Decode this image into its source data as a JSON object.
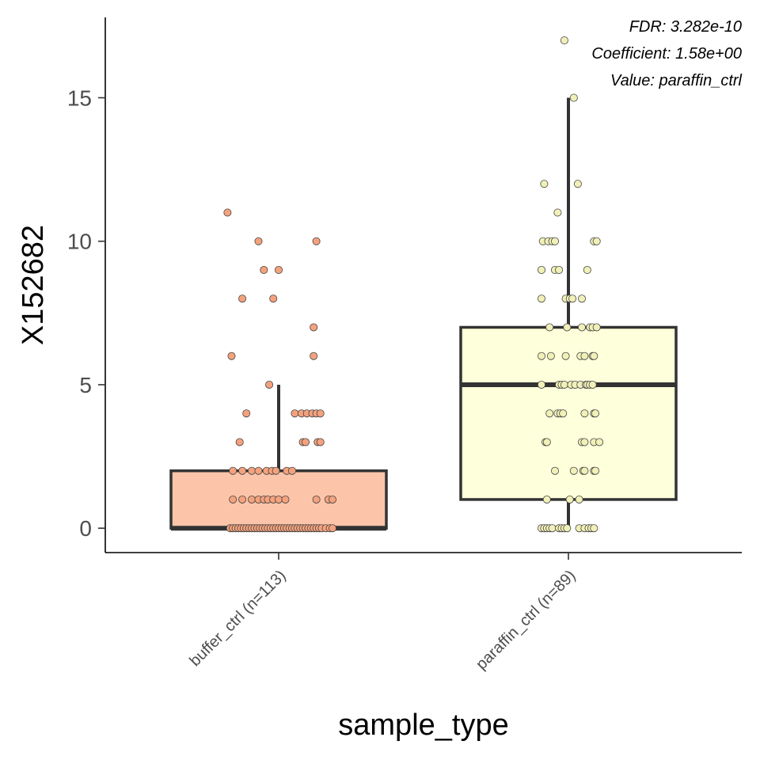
{
  "chart_data": {
    "type": "box",
    "xlabel": "sample_type",
    "ylabel": "X152682",
    "ylim": [
      -0.85,
      17.8
    ],
    "yticks": [
      0,
      5,
      10,
      15
    ],
    "categories": [
      "buffer_ctrl (n=113)",
      "paraffin_ctrl (n=89)"
    ],
    "annotations": [
      "FDR: 3.282e-10",
      "Coefficient: 1.58e+00",
      "Value: paraffin_ctrl"
    ],
    "grid": false,
    "legend": "none",
    "series": [
      {
        "category": "buffer_ctrl (n=113)",
        "fill": "#fcc5aa",
        "point_color": "#f4a27d",
        "box": {
          "q1": 0,
          "median": 0,
          "q3": 2,
          "whisker_low": 0,
          "whisker_high": 5
        },
        "points": [
          {
            "x": -0.38,
            "y": 11
          },
          {
            "x": -0.15,
            "y": 10
          },
          {
            "x": 0.28,
            "y": 10
          },
          {
            "x": -0.11,
            "y": 9
          },
          {
            "x": 0.0,
            "y": 9
          },
          {
            "x": -0.27,
            "y": 8
          },
          {
            "x": -0.04,
            "y": 8
          },
          {
            "x": 0.26,
            "y": 7
          },
          {
            "x": -0.35,
            "y": 6
          },
          {
            "x": 0.26,
            "y": 6
          },
          {
            "x": -0.07,
            "y": 5
          },
          {
            "x": -0.24,
            "y": 4
          },
          {
            "x": 0.12,
            "y": 4
          },
          {
            "x": 0.17,
            "y": 4
          },
          {
            "x": 0.21,
            "y": 4
          },
          {
            "x": 0.25,
            "y": 4
          },
          {
            "x": 0.28,
            "y": 4
          },
          {
            "x": 0.31,
            "y": 4
          },
          {
            "x": -0.29,
            "y": 3
          },
          {
            "x": 0.18,
            "y": 3
          },
          {
            "x": 0.2,
            "y": 3
          },
          {
            "x": 0.29,
            "y": 3
          },
          {
            "x": 0.31,
            "y": 3
          },
          {
            "x": -0.34,
            "y": 2
          },
          {
            "x": -0.27,
            "y": 2
          },
          {
            "x": -0.2,
            "y": 2
          },
          {
            "x": -0.15,
            "y": 2
          },
          {
            "x": -0.09,
            "y": 2
          },
          {
            "x": -0.05,
            "y": 2
          },
          {
            "x": -0.02,
            "y": 2
          },
          {
            "x": 0.06,
            "y": 2
          },
          {
            "x": 0.1,
            "y": 2
          },
          {
            "x": -0.34,
            "y": 1
          },
          {
            "x": -0.27,
            "y": 1
          },
          {
            "x": -0.2,
            "y": 1
          },
          {
            "x": -0.15,
            "y": 1
          },
          {
            "x": -0.11,
            "y": 1
          },
          {
            "x": -0.08,
            "y": 1
          },
          {
            "x": -0.04,
            "y": 1
          },
          {
            "x": 0.0,
            "y": 1
          },
          {
            "x": 0.05,
            "y": 1
          },
          {
            "x": 0.28,
            "y": 1
          },
          {
            "x": 0.37,
            "y": 1
          },
          {
            "x": 0.4,
            "y": 1
          },
          {
            "x": -0.36,
            "y": 0
          },
          {
            "x": -0.34,
            "y": 0
          },
          {
            "x": -0.32,
            "y": 0
          },
          {
            "x": -0.3,
            "y": 0
          },
          {
            "x": -0.28,
            "y": 0
          },
          {
            "x": -0.26,
            "y": 0
          },
          {
            "x": -0.24,
            "y": 0
          },
          {
            "x": -0.22,
            "y": 0
          },
          {
            "x": -0.2,
            "y": 0
          },
          {
            "x": -0.18,
            "y": 0
          },
          {
            "x": -0.16,
            "y": 0
          },
          {
            "x": -0.14,
            "y": 0
          },
          {
            "x": -0.12,
            "y": 0
          },
          {
            "x": -0.1,
            "y": 0
          },
          {
            "x": -0.08,
            "y": 0
          },
          {
            "x": -0.06,
            "y": 0
          },
          {
            "x": -0.04,
            "y": 0
          },
          {
            "x": -0.02,
            "y": 0
          },
          {
            "x": 0.0,
            "y": 0
          },
          {
            "x": 0.02,
            "y": 0
          },
          {
            "x": 0.04,
            "y": 0
          },
          {
            "x": 0.06,
            "y": 0
          },
          {
            "x": 0.08,
            "y": 0
          },
          {
            "x": 0.1,
            "y": 0
          },
          {
            "x": 0.12,
            "y": 0
          },
          {
            "x": 0.14,
            "y": 0
          },
          {
            "x": 0.16,
            "y": 0
          },
          {
            "x": 0.18,
            "y": 0
          },
          {
            "x": 0.2,
            "y": 0
          },
          {
            "x": 0.22,
            "y": 0
          },
          {
            "x": 0.24,
            "y": 0
          },
          {
            "x": 0.26,
            "y": 0
          },
          {
            "x": 0.28,
            "y": 0
          },
          {
            "x": 0.3,
            "y": 0
          },
          {
            "x": 0.32,
            "y": 0
          },
          {
            "x": 0.35,
            "y": 0
          },
          {
            "x": 0.38,
            "y": 0
          },
          {
            "x": 0.4,
            "y": 0
          }
        ]
      },
      {
        "category": "paraffin_ctrl (n=89)",
        "fill": "#feffdb",
        "point_color": "#f0f0b8",
        "box": {
          "q1": 1,
          "median": 5,
          "q3": 7,
          "whisker_low": 0,
          "whisker_high": 15
        },
        "points": [
          {
            "x": -0.03,
            "y": 17
          },
          {
            "x": 0.04,
            "y": 15
          },
          {
            "x": -0.18,
            "y": 12
          },
          {
            "x": 0.07,
            "y": 12
          },
          {
            "x": -0.08,
            "y": 11
          },
          {
            "x": -0.19,
            "y": 10
          },
          {
            "x": -0.15,
            "y": 10
          },
          {
            "x": -0.12,
            "y": 10
          },
          {
            "x": -0.1,
            "y": 10
          },
          {
            "x": 0.19,
            "y": 10
          },
          {
            "x": 0.21,
            "y": 10
          },
          {
            "x": -0.2,
            "y": 9
          },
          {
            "x": -0.1,
            "y": 9
          },
          {
            "x": -0.07,
            "y": 9
          },
          {
            "x": 0.14,
            "y": 9
          },
          {
            "x": -0.2,
            "y": 8
          },
          {
            "x": -0.02,
            "y": 8
          },
          {
            "x": 0.01,
            "y": 8
          },
          {
            "x": 0.03,
            "y": 8
          },
          {
            "x": 0.1,
            "y": 8
          },
          {
            "x": -0.14,
            "y": 7
          },
          {
            "x": -0.01,
            "y": 7
          },
          {
            "x": 0.1,
            "y": 7
          },
          {
            "x": 0.16,
            "y": 7
          },
          {
            "x": 0.18,
            "y": 7
          },
          {
            "x": 0.21,
            "y": 7
          },
          {
            "x": -0.2,
            "y": 6
          },
          {
            "x": -0.13,
            "y": 6
          },
          {
            "x": -0.02,
            "y": 6
          },
          {
            "x": 0.09,
            "y": 6
          },
          {
            "x": 0.12,
            "y": 6
          },
          {
            "x": 0.18,
            "y": 6
          },
          {
            "x": 0.19,
            "y": 6
          },
          {
            "x": -0.2,
            "y": 5
          },
          {
            "x": -0.07,
            "y": 5
          },
          {
            "x": -0.05,
            "y": 5
          },
          {
            "x": -0.03,
            "y": 5
          },
          {
            "x": 0.02,
            "y": 5
          },
          {
            "x": 0.05,
            "y": 5
          },
          {
            "x": 0.09,
            "y": 5
          },
          {
            "x": 0.13,
            "y": 5
          },
          {
            "x": 0.14,
            "y": 5
          },
          {
            "x": 0.16,
            "y": 5
          },
          {
            "x": 0.18,
            "y": 5
          },
          {
            "x": -0.14,
            "y": 4
          },
          {
            "x": -0.08,
            "y": 4
          },
          {
            "x": -0.06,
            "y": 4
          },
          {
            "x": -0.04,
            "y": 4
          },
          {
            "x": 0.12,
            "y": 4
          },
          {
            "x": 0.19,
            "y": 4
          },
          {
            "x": 0.2,
            "y": 4
          },
          {
            "x": -0.17,
            "y": 3
          },
          {
            "x": -0.16,
            "y": 3
          },
          {
            "x": 0.1,
            "y": 3
          },
          {
            "x": 0.12,
            "y": 3
          },
          {
            "x": 0.19,
            "y": 3
          },
          {
            "x": 0.23,
            "y": 3
          },
          {
            "x": -0.1,
            "y": 2
          },
          {
            "x": 0.04,
            "y": 2
          },
          {
            "x": 0.11,
            "y": 2
          },
          {
            "x": 0.12,
            "y": 2
          },
          {
            "x": 0.19,
            "y": 2
          },
          {
            "x": 0.2,
            "y": 2
          },
          {
            "x": -0.16,
            "y": 1
          },
          {
            "x": 0.01,
            "y": 1
          },
          {
            "x": 0.08,
            "y": 1
          },
          {
            "x": -0.2,
            "y": 0
          },
          {
            "x": -0.18,
            "y": 0
          },
          {
            "x": -0.16,
            "y": 0
          },
          {
            "x": -0.14,
            "y": 0
          },
          {
            "x": -0.12,
            "y": 0
          },
          {
            "x": -0.07,
            "y": 0
          },
          {
            "x": -0.05,
            "y": 0
          },
          {
            "x": -0.03,
            "y": 0
          },
          {
            "x": -0.01,
            "y": 0
          },
          {
            "x": 0.08,
            "y": 0
          },
          {
            "x": 0.12,
            "y": 0
          },
          {
            "x": 0.15,
            "y": 0
          },
          {
            "x": 0.17,
            "y": 0
          },
          {
            "x": 0.19,
            "y": 0
          }
        ]
      }
    ]
  }
}
